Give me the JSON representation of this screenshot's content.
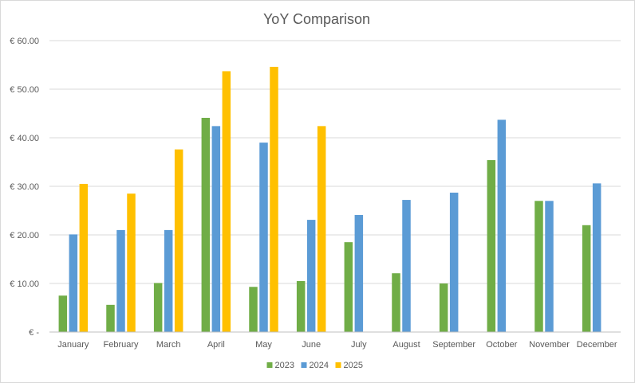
{
  "chart_data": {
    "type": "bar",
    "title": "YoY Comparison",
    "categories": [
      "January",
      "February",
      "March",
      "April",
      "May",
      "June",
      "July",
      "August",
      "September",
      "October",
      "November",
      "December"
    ],
    "series": [
      {
        "name": "2023",
        "color": "#70ad47",
        "values": [
          7.5,
          5.6,
          10.1,
          44.1,
          9.3,
          10.5,
          18.5,
          12.1,
          10.0,
          35.4,
          27.0,
          22.0
        ]
      },
      {
        "name": "2024",
        "color": "#5b9bd5",
        "values": [
          20.1,
          21.0,
          21.0,
          42.4,
          39.0,
          23.1,
          24.1,
          27.2,
          28.7,
          43.7,
          27.0,
          30.6
        ]
      },
      {
        "name": "2025",
        "color": "#ffc000",
        "values": [
          30.5,
          28.5,
          37.6,
          53.7,
          54.6,
          42.4,
          null,
          null,
          null,
          null,
          null,
          null
        ]
      }
    ],
    "ylim": [
      0,
      60
    ],
    "ytick_values": [
      0,
      10,
      20,
      30,
      40,
      50,
      60
    ],
    "ytick_labels": [
      "€ -",
      "€ 10.00",
      "€ 20.00",
      "€ 30.00",
      "€ 40.00",
      "€ 50.00",
      "€ 60.00"
    ],
    "grid": true,
    "legend_position": "bottom"
  }
}
